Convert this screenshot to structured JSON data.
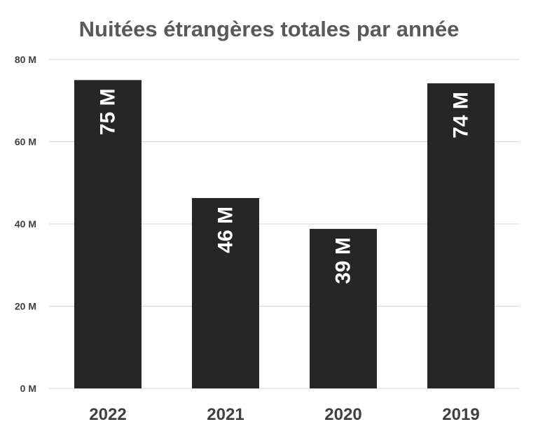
{
  "chart_data": {
    "type": "bar",
    "title": "Nuitées étrangères totales par année",
    "categories": [
      "2022",
      "2021",
      "2020",
      "2019"
    ],
    "values": [
      75,
      46.3,
      38.8,
      74.2
    ],
    "data_labels": [
      "75 M",
      "46 M",
      "39 M",
      "74 M"
    ],
    "y_ticks": [
      0,
      20,
      40,
      60,
      80
    ],
    "y_tick_labels": [
      "0 M",
      "20 M",
      "40 M",
      "60 M",
      "80 M"
    ],
    "ylim": [
      0,
      80
    ],
    "xlabel": "",
    "ylabel": "",
    "grid": true,
    "legend": "none",
    "colors": {
      "bar": "#262626",
      "data_label": "#ffffff",
      "grid": "#d9d9d9",
      "title": "#595959",
      "axis_text": "#404040"
    }
  }
}
